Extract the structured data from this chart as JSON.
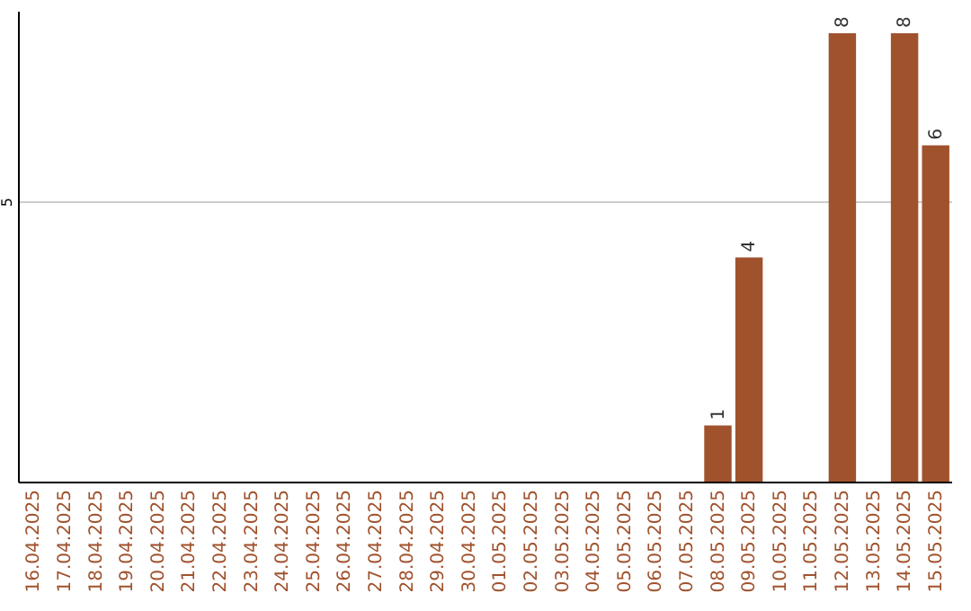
{
  "chart_data": {
    "type": "bar",
    "categories": [
      "16.04.2025",
      "17.04.2025",
      "18.04.2025",
      "19.04.2025",
      "20.04.2025",
      "21.04.2025",
      "22.04.2025",
      "23.04.2025",
      "24.04.2025",
      "25.04.2025",
      "26.04.2025",
      "27.04.2025",
      "28.04.2025",
      "29.04.2025",
      "30.04.2025",
      "01.05.2025",
      "02.05.2025",
      "03.05.2025",
      "04.05.2025",
      "05.05.2025",
      "06.05.2025",
      "07.05.2025",
      "08.05.2025",
      "09.05.2025",
      "10.05.2025",
      "11.05.2025",
      "12.05.2025",
      "13.05.2025",
      "14.05.2025",
      "15.05.2025"
    ],
    "values": [
      null,
      null,
      null,
      null,
      null,
      null,
      null,
      null,
      null,
      null,
      null,
      null,
      null,
      null,
      null,
      null,
      null,
      null,
      null,
      null,
      null,
      null,
      1,
      4,
      null,
      null,
      8,
      null,
      8,
      6
    ],
    "color": "#a0522d",
    "ylim": [
      0,
      8.4
    ],
    "yticks": [
      5
    ],
    "grid": "y",
    "data_labels": true
  }
}
